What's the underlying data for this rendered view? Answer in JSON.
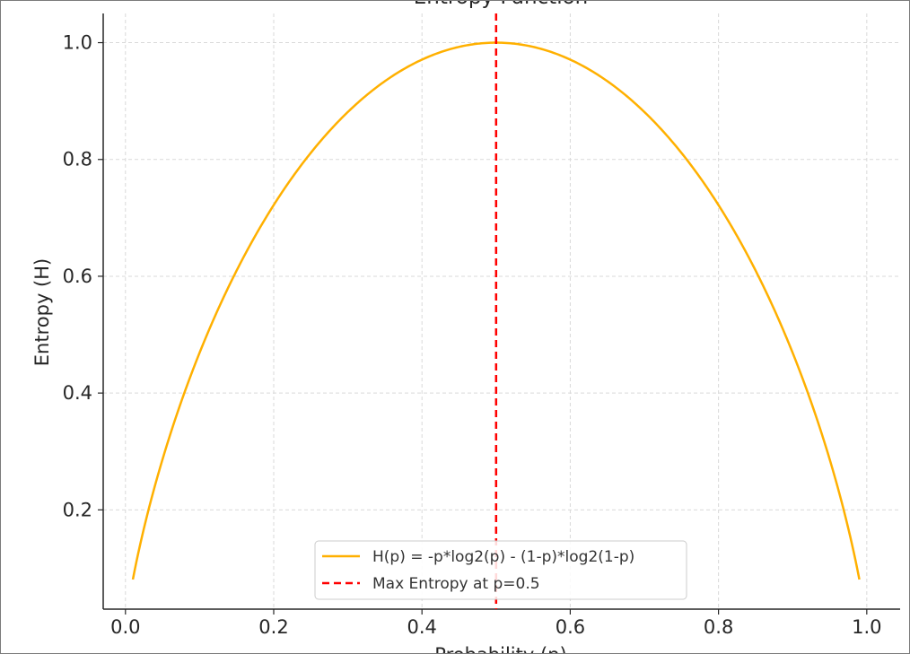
{
  "chart_data": {
    "type": "line",
    "title": "Entropy Function",
    "xlabel": "Probability (p)",
    "ylabel": "Entropy (H)",
    "xlim": [
      -0.03,
      1.045
    ],
    "ylim": [
      0.03,
      1.05
    ],
    "grid": true,
    "legend_position": "bottom-center",
    "xticks": [
      0.0,
      0.2,
      0.4,
      0.6,
      0.8,
      1.0
    ],
    "xtick_labels": [
      "0.0",
      "0.2",
      "0.4",
      "0.6",
      "0.8",
      "1.0"
    ],
    "yticks": [
      0.2,
      0.4,
      0.6,
      0.8,
      1.0
    ],
    "ytick_labels": [
      "0.2",
      "0.4",
      "0.6",
      "0.8",
      "1.0"
    ],
    "series": [
      {
        "name": "H(p) = -p*log2(p) - (1-p)*log2(1-p)",
        "style": "solid",
        "color": "#FFB000",
        "x": [
          0.01,
          0.02,
          0.03,
          0.05,
          0.07,
          0.1,
          0.13,
          0.16,
          0.2,
          0.25,
          0.3,
          0.35,
          0.4,
          0.45,
          0.5,
          0.55,
          0.6,
          0.65,
          0.7,
          0.75,
          0.8,
          0.84,
          0.87,
          0.9,
          0.93,
          0.95,
          0.97,
          0.98,
          0.99
        ],
        "y": [
          0.081,
          0.141,
          0.194,
          0.286,
          0.366,
          0.469,
          0.557,
          0.634,
          0.722,
          0.811,
          0.881,
          0.934,
          0.971,
          0.993,
          1.0,
          0.993,
          0.971,
          0.934,
          0.881,
          0.811,
          0.722,
          0.634,
          0.557,
          0.469,
          0.366,
          0.286,
          0.194,
          0.141,
          0.081
        ]
      },
      {
        "name": "Max Entropy at p=0.5",
        "style": "dashed",
        "color": "#FF0000",
        "x_value": 0.5
      }
    ]
  }
}
